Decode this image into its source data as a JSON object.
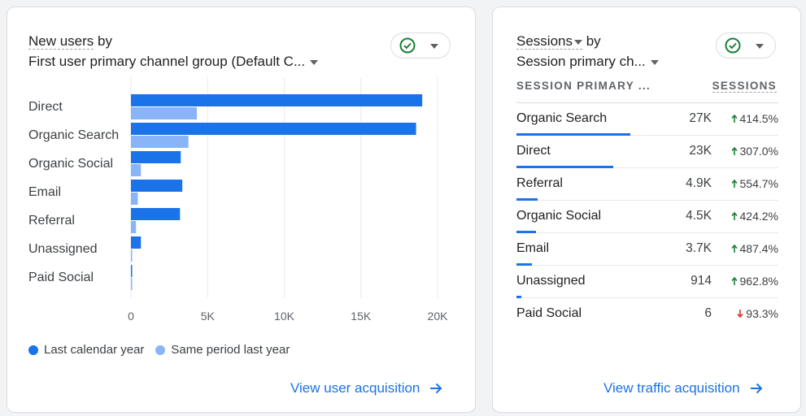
{
  "card1": {
    "title_part1": "New users",
    "title_part2": " by",
    "subtitle": "First user primary channel group (Default C...",
    "view_link": "View user acquisition"
  },
  "chart_data": {
    "type": "bar",
    "orientation": "horizontal",
    "categories": [
      "Direct",
      "Organic Search",
      "Organic Social",
      "Email",
      "Referral",
      "Unassigned",
      "Paid Social"
    ],
    "series": [
      {
        "name": "Last calendar year",
        "values": [
          19000,
          18600,
          3250,
          3350,
          3200,
          650,
          60
        ],
        "color": "#1a73e8"
      },
      {
        "name": "Same period last year",
        "values": [
          4300,
          3750,
          650,
          450,
          330,
          60,
          80
        ],
        "color": "#8ab4f8"
      }
    ],
    "xlim": [
      0,
      20000
    ],
    "xticks": [
      0,
      5000,
      10000,
      15000,
      20000
    ],
    "xtick_labels": [
      "0",
      "5K",
      "10K",
      "15K",
      "20K"
    ],
    "grid": true,
    "legend_position": "bottom-left"
  },
  "card2": {
    "title_part1": "Sessions",
    "title_part2": " by",
    "subtitle": "Session primary ch...",
    "col1": "SESSION PRIMARY ...",
    "col2": "SESSIONS",
    "rows": [
      {
        "name": "Organic Search",
        "value": "27K",
        "change": "414.5%",
        "dir": "up",
        "share": 0.435
      },
      {
        "name": "Direct",
        "value": "23K",
        "change": "307.0%",
        "dir": "up",
        "share": 0.37
      },
      {
        "name": "Referral",
        "value": "4.9K",
        "change": "554.7%",
        "dir": "up",
        "share": 0.08
      },
      {
        "name": "Organic Social",
        "value": "4.5K",
        "change": "424.2%",
        "dir": "up",
        "share": 0.075
      },
      {
        "name": "Email",
        "value": "3.7K",
        "change": "487.4%",
        "dir": "up",
        "share": 0.06
      },
      {
        "name": "Unassigned",
        "value": "914",
        "change": "962.8%",
        "dir": "up",
        "share": 0.02
      },
      {
        "name": "Paid Social",
        "value": "6",
        "change": "93.3%",
        "dir": "down",
        "share": 0.0
      }
    ],
    "view_link": "View traffic acquisition"
  },
  "colors": {
    "up": "#188038",
    "down": "#d93025",
    "link": "#1a73e8"
  }
}
